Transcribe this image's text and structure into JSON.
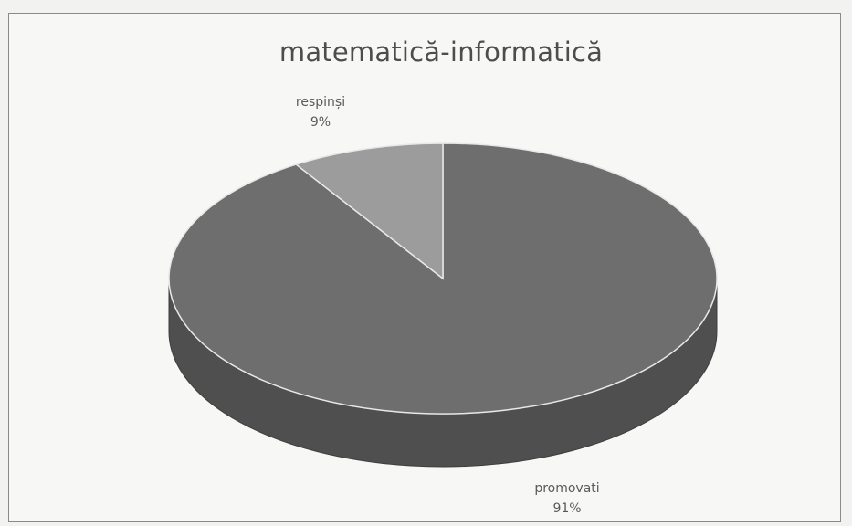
{
  "chart_data": {
    "type": "pie",
    "title": "matematică-informatică",
    "slices": [
      {
        "label": "promovati",
        "value": 91,
        "display": "91%",
        "color": "#6e6e6e"
      },
      {
        "label": "respinși",
        "value": 9,
        "display": "9%",
        "color": "#9c9c9c"
      }
    ],
    "style": "3d"
  }
}
